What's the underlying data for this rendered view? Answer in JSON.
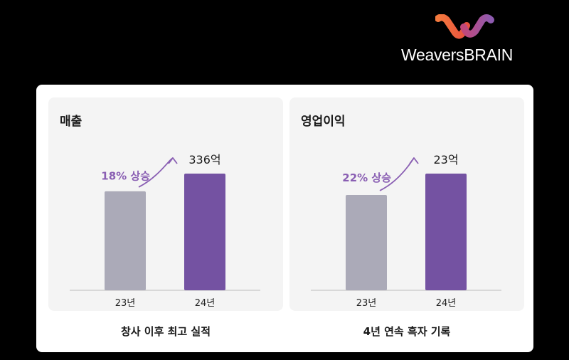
{
  "brand": {
    "name": "WeaversBRAIN",
    "colors": {
      "orange": "#f26a3d",
      "purple": "#8e5bb0"
    }
  },
  "panels": [
    {
      "title": "매출",
      "caption": "창사 이후 최고 실적",
      "growth_label": "18% 상승"
    },
    {
      "title": "영업이익",
      "caption": "4년 연속 흑자 기록",
      "growth_label": "22% 상승"
    }
  ],
  "colors": {
    "bar_prev": "#abaab8",
    "bar_curr": "#7452a2",
    "accent": "#8a5fb3",
    "baseline": "#bbbbbb"
  },
  "chart_data": [
    {
      "type": "bar",
      "title": "매출",
      "categories": [
        "23년",
        "24년"
      ],
      "values": [
        285,
        336
      ],
      "value_labels": [
        "",
        "336억"
      ],
      "unit": "억",
      "annotation": "18% 상승",
      "ylim": [
        0,
        336
      ]
    },
    {
      "type": "bar",
      "title": "영업이익",
      "categories": [
        "23년",
        "24년"
      ],
      "values": [
        18.8,
        23
      ],
      "value_labels": [
        "",
        "23억"
      ],
      "unit": "억",
      "annotation": "22% 상승",
      "ylim": [
        0,
        23
      ]
    }
  ]
}
